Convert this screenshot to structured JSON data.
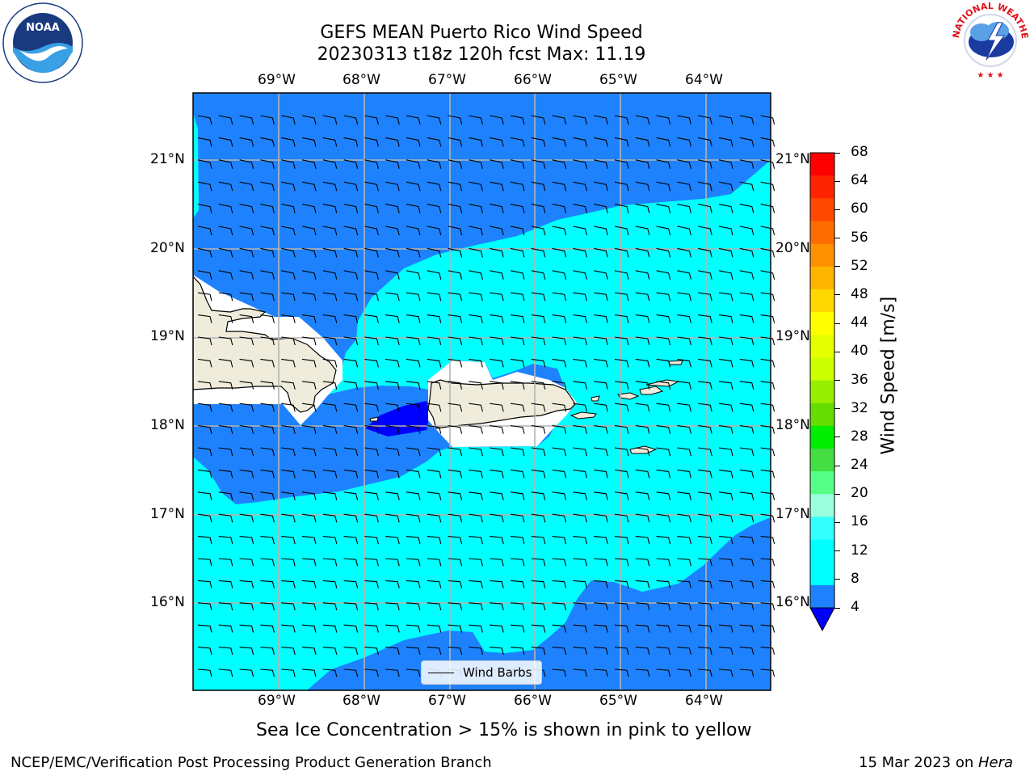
{
  "title": {
    "line1": "GEFS MEAN Puerto Rico Wind Speed",
    "line2": "20230313 t18z 120h fcst   Max: 11.19"
  },
  "map": {
    "lon_ticks": [
      "69°W",
      "68°W",
      "67°W",
      "66°W",
      "65°W",
      "64°W"
    ],
    "lat_ticks": [
      "21°N",
      "20°N",
      "19°N",
      "18°N",
      "17°N",
      "16°N"
    ],
    "legend_label": "Wind Barbs",
    "land_color": "#efecdc",
    "speed_colors": {
      "4-8": "#1e82ff",
      "8-12": "#00ffff",
      "below-4": "#0000ff"
    }
  },
  "colorbar": {
    "label": "Wind Speed [m/s]",
    "ticks": [
      "68",
      "64",
      "60",
      "56",
      "52",
      "48",
      "44",
      "40",
      "36",
      "32",
      "28",
      "24",
      "20",
      "16",
      "12",
      "8",
      "4"
    ],
    "colors": [
      "#ff0000",
      "#ff2400",
      "#ff4800",
      "#ff6c00",
      "#ff9000",
      "#ffb400",
      "#ffd800",
      "#ffff00",
      "#e6ff00",
      "#ccff00",
      "#99ee00",
      "#66dd00",
      "#00ee00",
      "#44dd44",
      "#55ff88",
      "#99ffdd",
      "#33ffff",
      "#00ffff",
      "#00ffff",
      "#1e82ff"
    ],
    "extend_color": "#0000ff"
  },
  "ice_note": "Sea Ice Concentration > 15% is shown in pink to yellow",
  "footer": {
    "left": "NCEP/EMC/Verification Post Processing Product Generation Branch",
    "date": "15 Mar 2023 on ",
    "machine": "Hera"
  },
  "logos": {
    "noaa": "NOAA",
    "nws": "NATIONAL WEATHER SERVICE"
  }
}
